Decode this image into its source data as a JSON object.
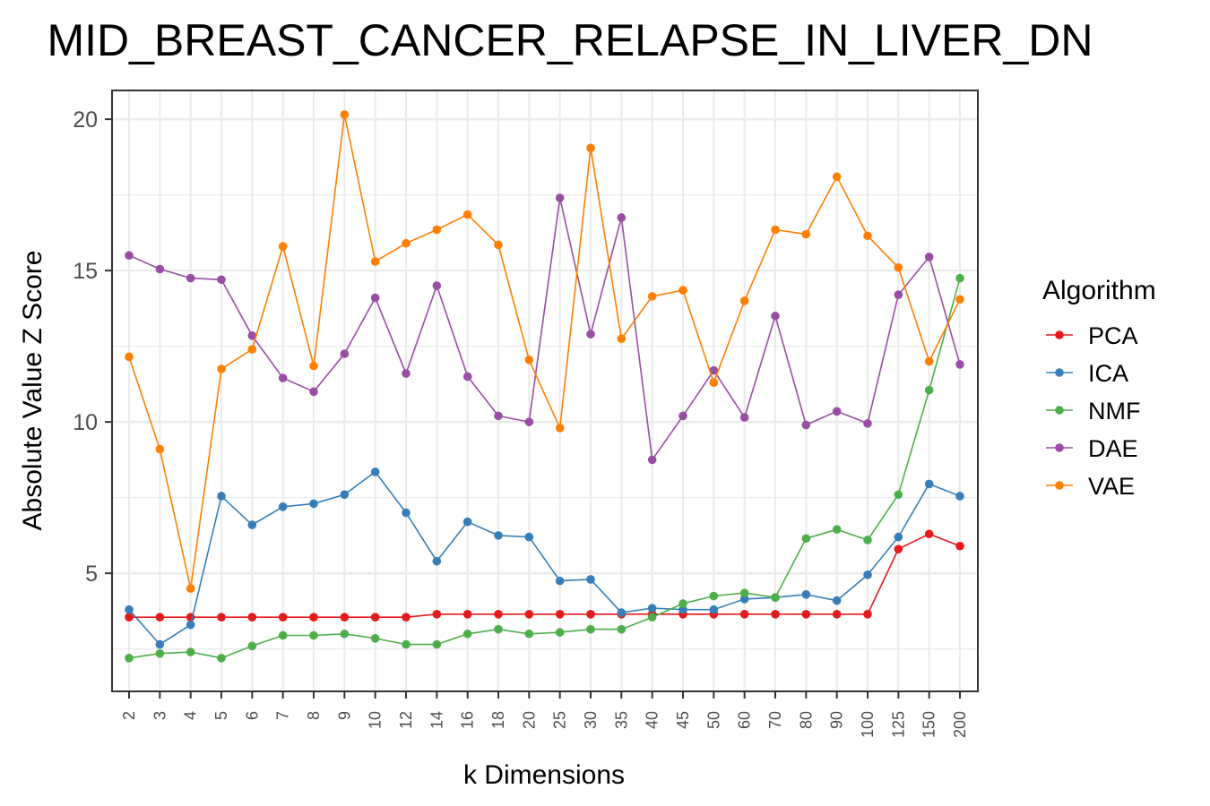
{
  "chart_data": {
    "type": "line",
    "title": "MID_BREAST_CANCER_RELAPSE_IN_LIVER_DN",
    "xlabel": "k Dimensions",
    "ylabel": "Absolute Value Z Score",
    "x": [
      "2",
      "3",
      "4",
      "5",
      "6",
      "7",
      "8",
      "9",
      "10",
      "12",
      "14",
      "16",
      "18",
      "20",
      "25",
      "30",
      "35",
      "40",
      "45",
      "50",
      "60",
      "70",
      "80",
      "90",
      "100",
      "125",
      "150",
      "200"
    ],
    "ylim": [
      1.1,
      20.95
    ],
    "yticks": [
      5,
      10,
      15,
      20
    ],
    "grid": true,
    "legend_title": "Algorithm",
    "legend_position": "right",
    "series": [
      {
        "name": "PCA",
        "color": "#e41a1c",
        "values": [
          3.55,
          3.55,
          3.55,
          3.55,
          3.55,
          3.55,
          3.55,
          3.55,
          3.55,
          3.55,
          3.65,
          3.65,
          3.65,
          3.65,
          3.65,
          3.65,
          3.65,
          3.65,
          3.65,
          3.65,
          3.65,
          3.65,
          3.65,
          3.65,
          3.65,
          5.8,
          6.3,
          5.9
        ]
      },
      {
        "name": "ICA",
        "color": "#377eb8",
        "values": [
          3.8,
          2.65,
          3.3,
          7.55,
          6.6,
          7.2,
          7.3,
          7.6,
          8.35,
          7.0,
          5.4,
          6.7,
          6.25,
          6.2,
          4.75,
          4.8,
          3.7,
          3.85,
          3.8,
          3.8,
          4.15,
          4.2,
          4.3,
          4.1,
          4.95,
          6.2,
          7.95,
          7.55
        ]
      },
      {
        "name": "NMF",
        "color": "#4daf4a",
        "values": [
          2.2,
          2.35,
          2.4,
          2.2,
          2.6,
          2.95,
          2.95,
          3.0,
          2.85,
          2.65,
          2.65,
          3.0,
          3.15,
          3.0,
          3.05,
          3.15,
          3.15,
          3.55,
          4.0,
          4.25,
          4.35,
          4.2,
          6.15,
          6.45,
          6.1,
          7.6,
          11.05,
          14.75
        ]
      },
      {
        "name": "DAE",
        "color": "#984ea3",
        "values": [
          15.5,
          15.05,
          14.75,
          14.7,
          12.85,
          11.45,
          11.0,
          12.25,
          14.1,
          11.6,
          14.5,
          11.5,
          10.2,
          10.0,
          17.4,
          12.9,
          16.75,
          8.75,
          10.2,
          11.7,
          10.15,
          13.5,
          9.9,
          10.35,
          9.95,
          14.2,
          15.45,
          11.9
        ]
      },
      {
        "name": "VAE",
        "color": "#ff7f00",
        "values": [
          12.15,
          9.1,
          4.5,
          11.75,
          12.4,
          15.8,
          11.85,
          20.15,
          15.3,
          15.9,
          16.35,
          16.85,
          15.85,
          12.05,
          9.8,
          19.05,
          12.75,
          14.15,
          14.35,
          11.3,
          14.0,
          16.35,
          16.2,
          18.1,
          16.15,
          15.1,
          12.0,
          14.05
        ]
      }
    ]
  }
}
